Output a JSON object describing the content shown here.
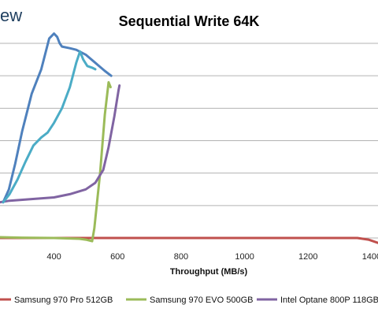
{
  "logo_text": "ew",
  "chart_data": {
    "type": "line",
    "title": "Sequential Write 64K",
    "xlabel": "Throughput (MB/s)",
    "ylabel": "",
    "xlim": [
      230,
      1420
    ],
    "ylim": [
      0,
      12
    ],
    "xticks": [
      400,
      600,
      800,
      1000,
      1200,
      1400
    ],
    "x_tick_labels": [
      "400",
      "600",
      "800",
      "1000",
      "1200",
      "1400"
    ],
    "grid": true,
    "legend_position": "bottom",
    "series": [
      {
        "name": "Samsung 970 Pro 512GB",
        "color": "#c0504d",
        "points": [
          [
            230,
            0.0
          ],
          [
            400,
            0.0
          ],
          [
            600,
            0.0
          ],
          [
            800,
            0.0
          ],
          [
            1000,
            0.0
          ],
          [
            1200,
            0.0
          ],
          [
            1300,
            0.0
          ],
          [
            1355,
            0.0
          ],
          [
            1390,
            -0.1
          ],
          [
            1420,
            -0.3
          ]
        ]
      },
      {
        "name": "Samsung 970 EVO 500GB",
        "color": "#9bbb59",
        "points": [
          [
            230,
            0.05
          ],
          [
            300,
            0.02
          ],
          [
            400,
            0.0
          ],
          [
            480,
            -0.05
          ],
          [
            500,
            -0.1
          ],
          [
            520,
            -0.2
          ],
          [
            527,
            0.6
          ],
          [
            545,
            4.0
          ],
          [
            560,
            7.6
          ],
          [
            572,
            9.6
          ],
          [
            578,
            9.3
          ]
        ]
      },
      {
        "name": "Intel Optane 800P 118GB",
        "color": "#8064a2",
        "points": [
          [
            230,
            2.2
          ],
          [
            260,
            2.3
          ],
          [
            330,
            2.4
          ],
          [
            400,
            2.5
          ],
          [
            450,
            2.7
          ],
          [
            500,
            3.0
          ],
          [
            530,
            3.4
          ],
          [
            555,
            4.2
          ],
          [
            572,
            5.6
          ],
          [
            590,
            7.5
          ],
          [
            603,
            9.1
          ],
          [
            606,
            9.4
          ]
        ]
      },
      {
        "name": "",
        "color": "#4f81bd",
        "points": [
          [
            240,
            2.2
          ],
          [
            258,
            3.0
          ],
          [
            278,
            4.6
          ],
          [
            300,
            6.6
          ],
          [
            330,
            8.9
          ],
          [
            360,
            10.4
          ],
          [
            385,
            12.3
          ],
          [
            400,
            12.6
          ],
          [
            410,
            12.4
          ],
          [
            418,
            12.0
          ],
          [
            425,
            11.8
          ],
          [
            450,
            11.7
          ],
          [
            470,
            11.6
          ],
          [
            500,
            11.3
          ],
          [
            530,
            10.8
          ],
          [
            560,
            10.3
          ],
          [
            580,
            10.0
          ]
        ]
      },
      {
        "name": "",
        "color": "#4bacc6",
        "points": [
          [
            240,
            2.2
          ],
          [
            260,
            2.7
          ],
          [
            285,
            3.6
          ],
          [
            310,
            4.7
          ],
          [
            335,
            5.7
          ],
          [
            360,
            6.2
          ],
          [
            380,
            6.5
          ],
          [
            400,
            7.1
          ],
          [
            425,
            8.0
          ],
          [
            450,
            9.3
          ],
          [
            470,
            10.8
          ],
          [
            482,
            11.5
          ],
          [
            492,
            11.0
          ],
          [
            505,
            10.6
          ],
          [
            520,
            10.5
          ],
          [
            530,
            10.4
          ]
        ]
      }
    ]
  }
}
